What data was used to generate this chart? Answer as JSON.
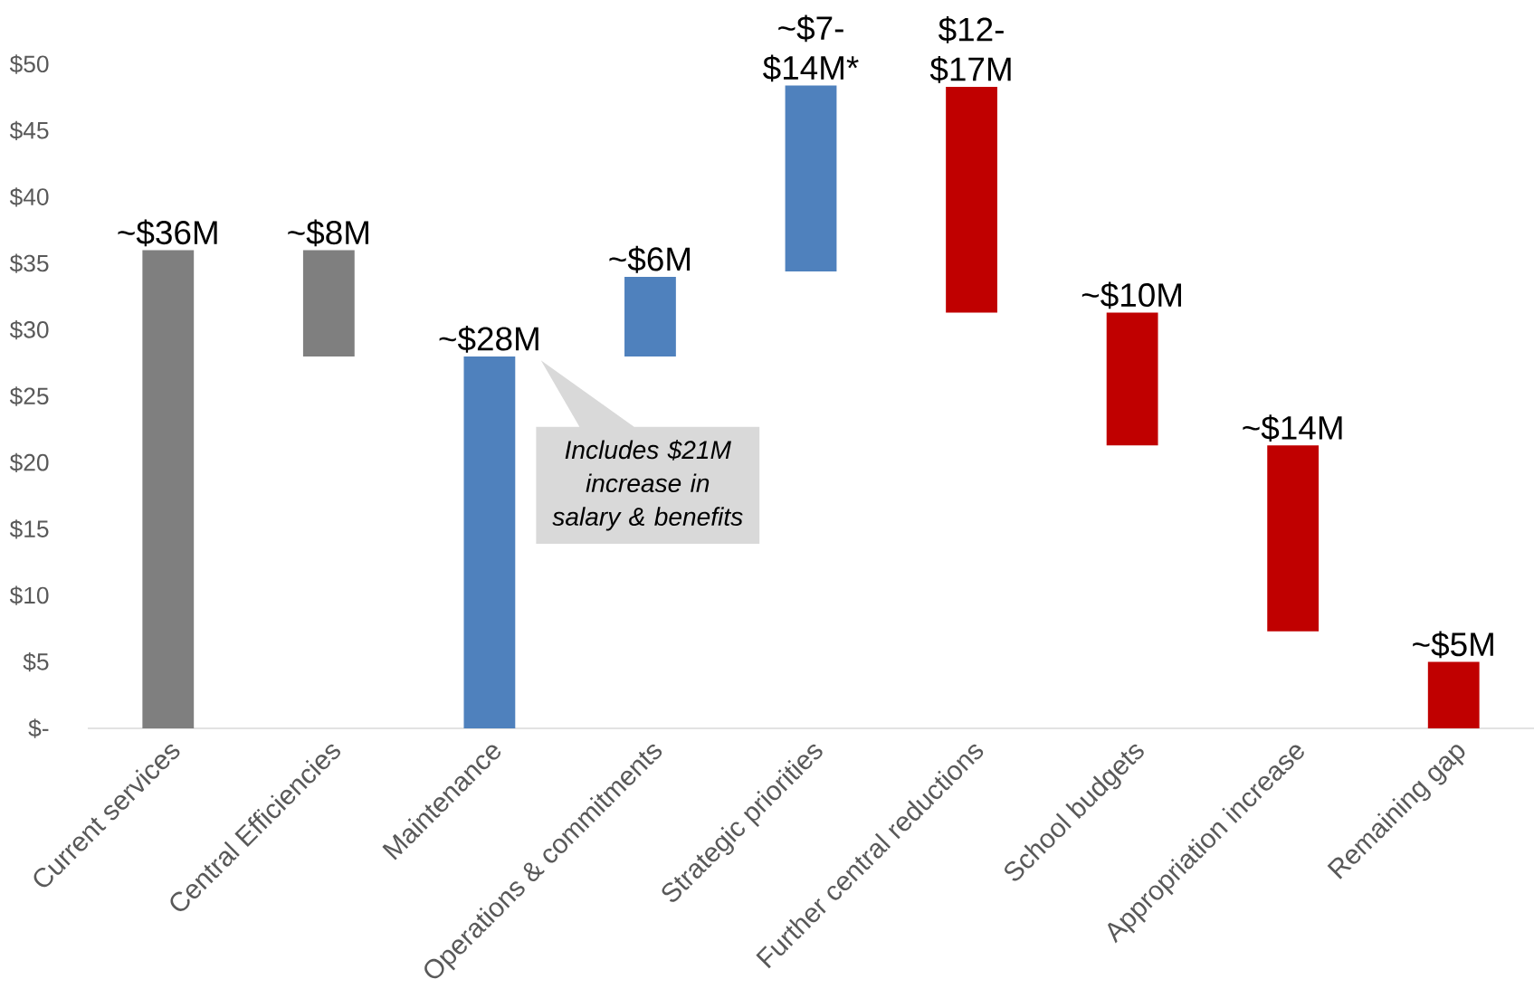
{
  "chart_data": {
    "type": "bar",
    "categories": [
      "Current services",
      "Central Efficiencies",
      "Maintenance",
      "Operations & commitments",
      "Strategic priorities",
      "Further central reductions",
      "School budgets",
      "Appropriation increase",
      "Remaining gap"
    ],
    "values": [
      36,
      8,
      28,
      6,
      14,
      17,
      10,
      14,
      5
    ],
    "base": [
      0,
      28,
      0,
      28,
      34.4,
      31.3,
      21.3,
      7.3,
      0
    ],
    "colors": [
      "#7f7f7f",
      "#7f7f7f",
      "#4f81bd",
      "#4f81bd",
      "#4f81bd",
      "#c00000",
      "#c00000",
      "#c00000",
      "#c00000"
    ],
    "value_labels": [
      "~$36M",
      "~$8M",
      "~$28M",
      "~$6M",
      "~$7-$14M*",
      "$12-$17M",
      "~$10M",
      "~$14M",
      "~$5M"
    ],
    "ylim": [
      0,
      50
    ],
    "yticks": [
      {
        "value": 0,
        "label": "$-"
      },
      {
        "value": 5,
        "label": "$5"
      },
      {
        "value": 10,
        "label": "$10"
      },
      {
        "value": 15,
        "label": "$15"
      },
      {
        "value": 20,
        "label": "$20"
      },
      {
        "value": 25,
        "label": "$25"
      },
      {
        "value": 30,
        "label": "$30"
      },
      {
        "value": 35,
        "label": "$35"
      },
      {
        "value": 40,
        "label": "$40"
      },
      {
        "value": 45,
        "label": "$45"
      },
      {
        "value": 50,
        "label": "$50"
      }
    ],
    "annotations": [
      "Includes $21M increase in salary & benefits"
    ]
  }
}
